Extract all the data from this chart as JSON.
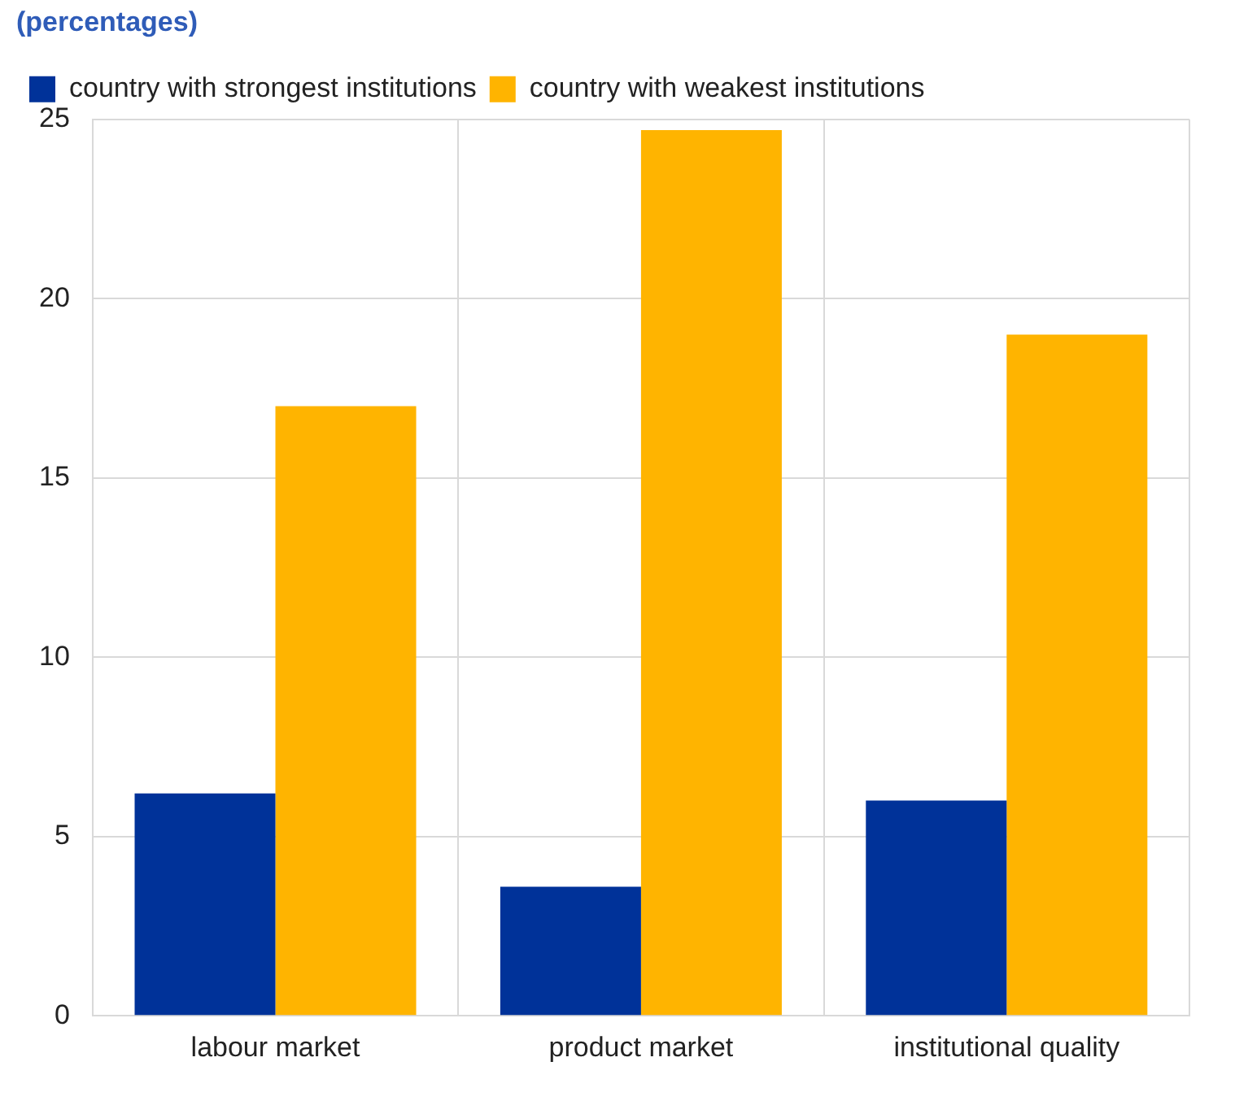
{
  "chart_data": {
    "type": "bar",
    "title": "(percentages)",
    "categories": [
      "labour market",
      "product market",
      "institutional quality"
    ],
    "series": [
      {
        "name": "country with strongest institutions",
        "color": "#003299",
        "values": [
          6.2,
          3.6,
          6.0
        ]
      },
      {
        "name": "country with weakest institutions",
        "color": "#ffb400",
        "values": [
          17.0,
          24.7,
          19.0
        ]
      }
    ],
    "ylim": [
      0,
      25
    ],
    "yticks": [
      0,
      5,
      10,
      15,
      20,
      25
    ],
    "grid": true,
    "legend": "top left"
  }
}
